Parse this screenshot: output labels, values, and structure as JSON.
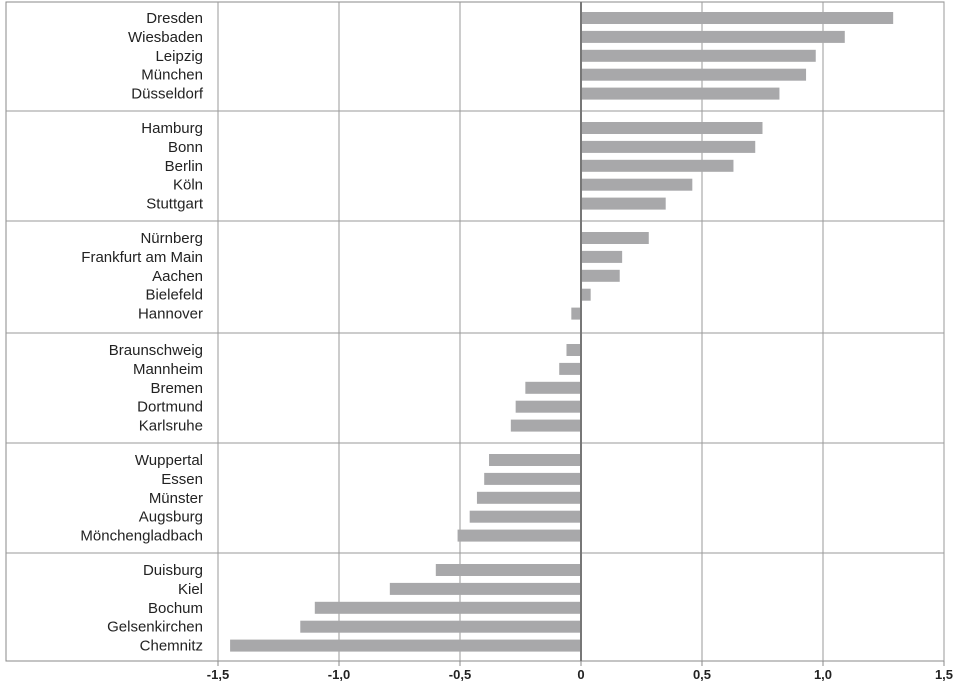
{
  "chart_data": {
    "type": "bar",
    "orientation": "horizontal",
    "categories": [
      "Dresden",
      "Wiesbaden",
      "Leipzig",
      "München",
      "Düsseldorf",
      "Hamburg",
      "Bonn",
      "Berlin",
      "Köln",
      "Stuttgart",
      "Nürnberg",
      "Frankfurt am Main",
      "Aachen",
      "Bielefeld",
      "Hannover",
      "Braunschweig",
      "Mannheim",
      "Bremen",
      "Dortmund",
      "Karlsruhe",
      "Wuppertal",
      "Essen",
      "Münster",
      "Augsburg",
      "Mönchengladbach",
      "Duisburg",
      "Kiel",
      "Bochum",
      "Gelsenkirchen",
      "Chemnitz"
    ],
    "values": [
      1.29,
      1.09,
      0.97,
      0.93,
      0.82,
      0.75,
      0.72,
      0.63,
      0.46,
      0.35,
      0.28,
      0.17,
      0.16,
      0.04,
      -0.04,
      -0.06,
      -0.09,
      -0.23,
      -0.27,
      -0.29,
      -0.38,
      -0.4,
      -0.43,
      -0.46,
      -0.51,
      -0.6,
      -0.79,
      -1.1,
      -1.16,
      -1.45
    ],
    "group_size": 5,
    "xlim": [
      -1.5,
      1.5
    ],
    "x_ticks": [
      -1.5,
      -1.0,
      -0.5,
      0,
      0.5,
      1.0,
      1.5
    ],
    "x_tick_labels": [
      "-1,5",
      "-1,0",
      "-0,5",
      "0",
      "0,5",
      "1,0",
      "1,5"
    ],
    "title": "",
    "xlabel": "",
    "ylabel": "",
    "grid": "vertical",
    "colors": {
      "bar": "#a8a8aa",
      "grid": "#9a9a9a",
      "zero_line": "#777777",
      "border": "#888888",
      "text": "#222222"
    }
  }
}
